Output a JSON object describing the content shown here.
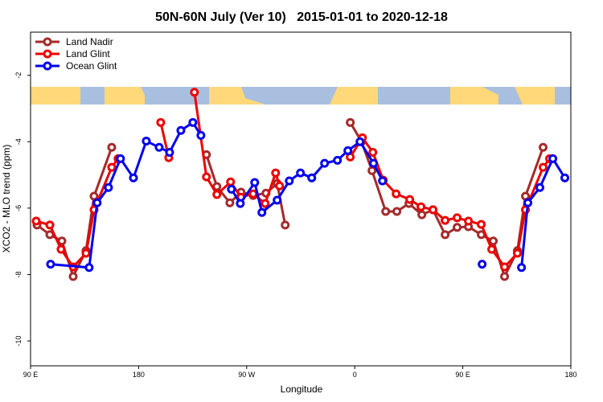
{
  "chart_data": {
    "type": "line",
    "title": "50N-60N July (Ver 10)   2015-01-01 to 2020-12-18",
    "x_label": "Longitude",
    "y_label": "XCO2 - MLO trend (ppm)",
    "xlim": [
      90,
      540
    ],
    "ylim": [
      -10.75,
      -0.7
    ],
    "xticks": [
      {
        "value": 90,
        "label": "90 E"
      },
      {
        "value": 180,
        "label": "180"
      },
      {
        "value": 270,
        "label": "90 W"
      },
      {
        "value": 360,
        "label": "0"
      },
      {
        "value": 450,
        "label": "90 E"
      },
      {
        "value": 540,
        "label": "180"
      }
    ],
    "yticks": [
      -2,
      -4,
      -6,
      -8,
      -10
    ],
    "grid": false,
    "legend": "top-left",
    "series": [
      {
        "name": "Land Nadir",
        "color": "#a52a2a",
        "x": [
          95.4,
          106.1,
          116.1,
          125.5,
          136.2,
          142.9,
          157.6,
          null,
          236.5,
          245.2,
          256.0,
          265.3,
          275.4,
          286.1,
          295.4,
          302.1,
          null,
          356.3,
          365.7,
          374.4,
          385.8,
          395.1,
          405.2,
          415.9,
          425.2,
          435.3,
          445.3,
          454.7,
          465.4,
          475.4,
          484.8,
          495.5,
          502.2,
          516.9
        ],
        "values": [
          -6.51,
          -6.8,
          -6.99,
          -8.06,
          -7.28,
          -5.64,
          -4.17,
          null,
          -4.39,
          -5.35,
          -5.84,
          -5.52,
          -5.62,
          -5.55,
          -5.26,
          -6.51,
          null,
          -3.42,
          -4.0,
          -4.87,
          -6.1,
          -6.1,
          -5.86,
          -6.2,
          -6.05,
          -6.8,
          -6.58,
          -6.56,
          -6.8,
          -6.99,
          -8.06,
          -7.28,
          -5.64,
          -4.17
        ]
      },
      {
        "name": "Land Glint",
        "color": "#ee0000",
        "x": [
          94.7,
          106.1,
          115.4,
          125.5,
          136.2,
          142.9,
          157.6,
          162.9,
          null,
          198.4,
          205.1,
          null,
          226.5,
          236.5,
          245.2,
          256.6,
          265.3,
          275.4,
          285.4,
          294.1,
          297.4,
          null,
          356.3,
          366.4,
          375.1,
          383.8,
          394.5,
          405.8,
          415.2,
          425.2,
          435.3,
          445.3,
          454.7,
          465.4,
          474.1,
          484.8,
          495.5,
          502.2,
          516.9,
          522.3
        ],
        "values": [
          -6.39,
          -6.51,
          -7.24,
          -7.77,
          -7.36,
          -6.05,
          -4.77,
          -4.51,
          null,
          -3.42,
          -4.48,
          null,
          -2.51,
          -5.06,
          -5.59,
          -5.21,
          -5.67,
          -5.57,
          -5.86,
          -4.94,
          -5.33,
          null,
          -4.46,
          -3.88,
          -4.32,
          -5.16,
          -5.57,
          -5.74,
          -5.96,
          -6.05,
          -6.37,
          -6.29,
          -6.39,
          -6.49,
          -7.24,
          -7.77,
          -7.36,
          -6.05,
          -4.77,
          -4.51
        ]
      },
      {
        "name": "Ocean Glint",
        "color": "#0000ee",
        "x": [
          106.7,
          138.8,
          145.5,
          154.9,
          164.9,
          175.7,
          186.4,
          197.1,
          205.8,
          215.2,
          225.2,
          231.9,
          null,
          257.3,
          264.7,
          276.7,
          282.7,
          295.4,
          305.5,
          314.8,
          324.2,
          334.9,
          345.6,
          354.3,
          364.4,
          375.7,
          383.1,
          null,
          466.1,
          null,
          498.9,
          504.2,
          514.2,
          525.0,
          535.0
        ],
        "values": [
          -7.69,
          -7.79,
          -5.84,
          -5.38,
          -4.51,
          -5.09,
          -3.98,
          -4.17,
          -4.32,
          -3.66,
          -3.42,
          -3.81,
          null,
          -5.43,
          -5.86,
          -5.23,
          -6.13,
          -5.76,
          -5.18,
          -4.94,
          -5.09,
          -4.65,
          -4.56,
          -4.27,
          -4.0,
          -4.65,
          -5.18,
          null,
          -7.69,
          null,
          -7.79,
          -5.84,
          -5.38,
          -4.51,
          -5.09
        ]
      }
    ]
  }
}
